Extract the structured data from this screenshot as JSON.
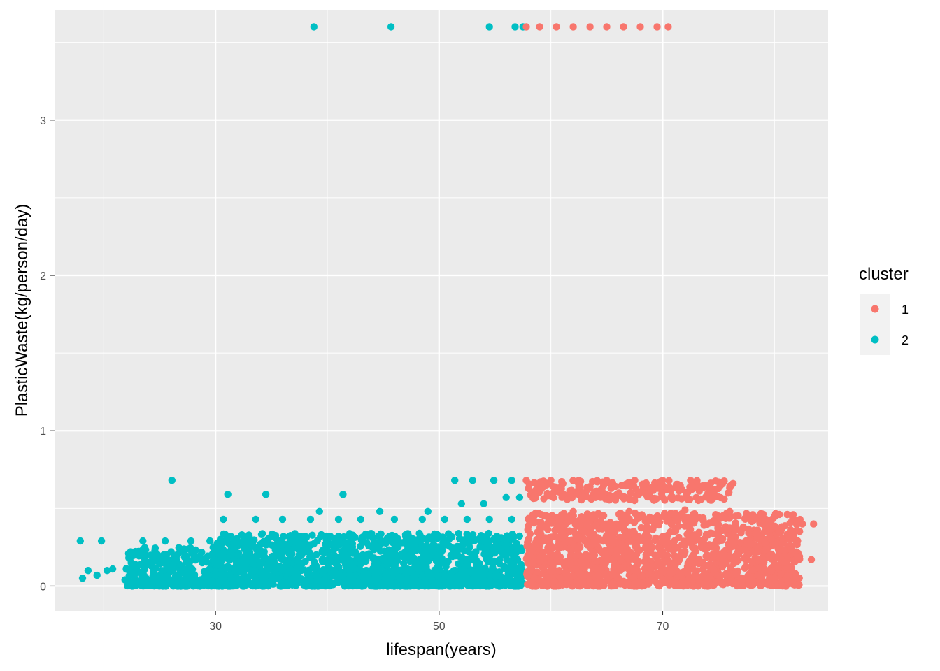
{
  "chart_data": {
    "type": "scatter",
    "xlabel": "lifespan(years)",
    "ylabel": "PlasticWaste(kg/person/day)",
    "xlim": [
      15.6,
      84.8
    ],
    "ylim": [
      -0.16,
      3.71
    ],
    "x_ticks": [
      30,
      50,
      70
    ],
    "x_tick_labels": [
      "30",
      "50",
      "70"
    ],
    "y_ticks": [
      0,
      1,
      2,
      3
    ],
    "y_tick_labels": [
      "0",
      "1",
      "2",
      "3"
    ],
    "grid": true,
    "legend": {
      "title": "cluster",
      "position": "right",
      "entries": [
        {
          "label": "1",
          "color": "#F8766D"
        },
        {
          "label": "2",
          "color": "#00BFC4"
        }
      ]
    },
    "series": [
      {
        "name": "1",
        "color": "#F8766D",
        "points": [
          [
            57.8,
            3.6
          ],
          [
            59.0,
            3.6
          ],
          [
            60.5,
            3.6
          ],
          [
            62.0,
            3.6
          ],
          [
            63.5,
            3.6
          ],
          [
            65.0,
            3.6
          ],
          [
            66.5,
            3.6
          ],
          [
            68.0,
            3.6
          ],
          [
            69.5,
            3.6
          ],
          [
            70.5,
            3.6
          ],
          [
            57.8,
            0.68
          ],
          [
            60.0,
            0.68
          ],
          [
            62.5,
            0.68
          ],
          [
            65.0,
            0.68
          ],
          [
            67.5,
            0.68
          ],
          [
            70.0,
            0.68
          ],
          [
            72.5,
            0.68
          ],
          [
            75.0,
            0.67
          ],
          [
            76.3,
            0.66
          ],
          [
            58.5,
            0.58
          ],
          [
            61.0,
            0.57
          ],
          [
            64.0,
            0.57
          ],
          [
            67.0,
            0.56
          ],
          [
            70.0,
            0.57
          ],
          [
            73.0,
            0.57
          ],
          [
            75.5,
            0.56
          ],
          [
            58.2,
            0.42
          ],
          [
            62.0,
            0.48
          ],
          [
            67.0,
            0.48
          ],
          [
            72.0,
            0.49
          ],
          [
            76.0,
            0.48
          ],
          [
            80.0,
            0.45
          ],
          [
            82.5,
            0.4
          ],
          [
            83.5,
            0.4
          ],
          [
            59.0,
            0.33
          ],
          [
            63.0,
            0.35
          ],
          [
            67.0,
            0.33
          ],
          [
            71.0,
            0.35
          ],
          [
            75.0,
            0.33
          ],
          [
            79.0,
            0.3
          ],
          [
            82.0,
            0.28
          ],
          [
            83.3,
            0.17
          ],
          [
            58.5,
            0.25
          ],
          [
            62.5,
            0.2
          ],
          [
            66.5,
            0.22
          ],
          [
            70.5,
            0.24
          ],
          [
            74.5,
            0.2
          ],
          [
            78.5,
            0.22
          ],
          [
            81.5,
            0.12
          ],
          [
            58.2,
            0.1
          ],
          [
            61.5,
            0.05
          ],
          [
            65.0,
            0.08
          ],
          [
            69.0,
            0.04
          ],
          [
            73.0,
            0.06
          ],
          [
            77.0,
            0.03
          ],
          [
            80.0,
            0.05
          ]
        ]
      },
      {
        "name": "2",
        "color": "#00BFC4",
        "points": [
          [
            38.8,
            3.6
          ],
          [
            45.7,
            3.6
          ],
          [
            54.5,
            3.6
          ],
          [
            56.8,
            3.6
          ],
          [
            57.5,
            3.6
          ],
          [
            26.1,
            0.68
          ],
          [
            31.1,
            0.59
          ],
          [
            34.5,
            0.59
          ],
          [
            41.4,
            0.59
          ],
          [
            51.4,
            0.68
          ],
          [
            53.0,
            0.68
          ],
          [
            54.9,
            0.68
          ],
          [
            56.5,
            0.68
          ],
          [
            17.9,
            0.29
          ],
          [
            19.8,
            0.29
          ],
          [
            23.5,
            0.29
          ],
          [
            25.5,
            0.29
          ],
          [
            27.8,
            0.29
          ],
          [
            29.5,
            0.29
          ],
          [
            18.1,
            0.05
          ],
          [
            18.6,
            0.1
          ],
          [
            19.4,
            0.07
          ],
          [
            20.3,
            0.1
          ],
          [
            20.8,
            0.11
          ],
          [
            21.9,
            0.04
          ],
          [
            22.4,
            0.22
          ],
          [
            23.2,
            0.02
          ],
          [
            23.9,
            0.14
          ],
          [
            24.5,
            0.03
          ],
          [
            25.2,
            0.1
          ],
          [
            26.4,
            0.06
          ],
          [
            27.0,
            0.12
          ],
          [
            28.0,
            0.04
          ],
          [
            28.8,
            0.15
          ],
          [
            30.7,
            0.43
          ],
          [
            33.6,
            0.43
          ],
          [
            36.0,
            0.43
          ],
          [
            38.5,
            0.43
          ],
          [
            39.3,
            0.48
          ],
          [
            41.0,
            0.43
          ],
          [
            43.0,
            0.43
          ],
          [
            44.7,
            0.48
          ],
          [
            46.0,
            0.43
          ],
          [
            48.5,
            0.43
          ],
          [
            49.0,
            0.48
          ],
          [
            50.5,
            0.43
          ],
          [
            52.5,
            0.43
          ],
          [
            54.5,
            0.43
          ],
          [
            56.5,
            0.43
          ],
          [
            52.0,
            0.53
          ],
          [
            54.0,
            0.53
          ],
          [
            56.0,
            0.57
          ],
          [
            57.2,
            0.57
          ],
          [
            31.0,
            0.3
          ],
          [
            33.0,
            0.32
          ],
          [
            35.0,
            0.32
          ],
          [
            38.0,
            0.32
          ],
          [
            41.0,
            0.32
          ],
          [
            44.0,
            0.32
          ],
          [
            47.0,
            0.33
          ],
          [
            50.0,
            0.32
          ],
          [
            53.0,
            0.32
          ],
          [
            56.0,
            0.31
          ],
          [
            32.0,
            0.2
          ],
          [
            35.5,
            0.22
          ],
          [
            39.0,
            0.2
          ],
          [
            42.5,
            0.22
          ],
          [
            46.0,
            0.2
          ],
          [
            49.5,
            0.22
          ],
          [
            53.0,
            0.2
          ],
          [
            56.5,
            0.21
          ],
          [
            30.0,
            0.08
          ],
          [
            33.5,
            0.1
          ],
          [
            37.0,
            0.05
          ],
          [
            40.5,
            0.08
          ],
          [
            44.0,
            0.04
          ],
          [
            47.5,
            0.09
          ],
          [
            51.0,
            0.03
          ],
          [
            54.5,
            0.07
          ],
          [
            57.3,
            0.05
          ]
        ]
      }
    ]
  }
}
